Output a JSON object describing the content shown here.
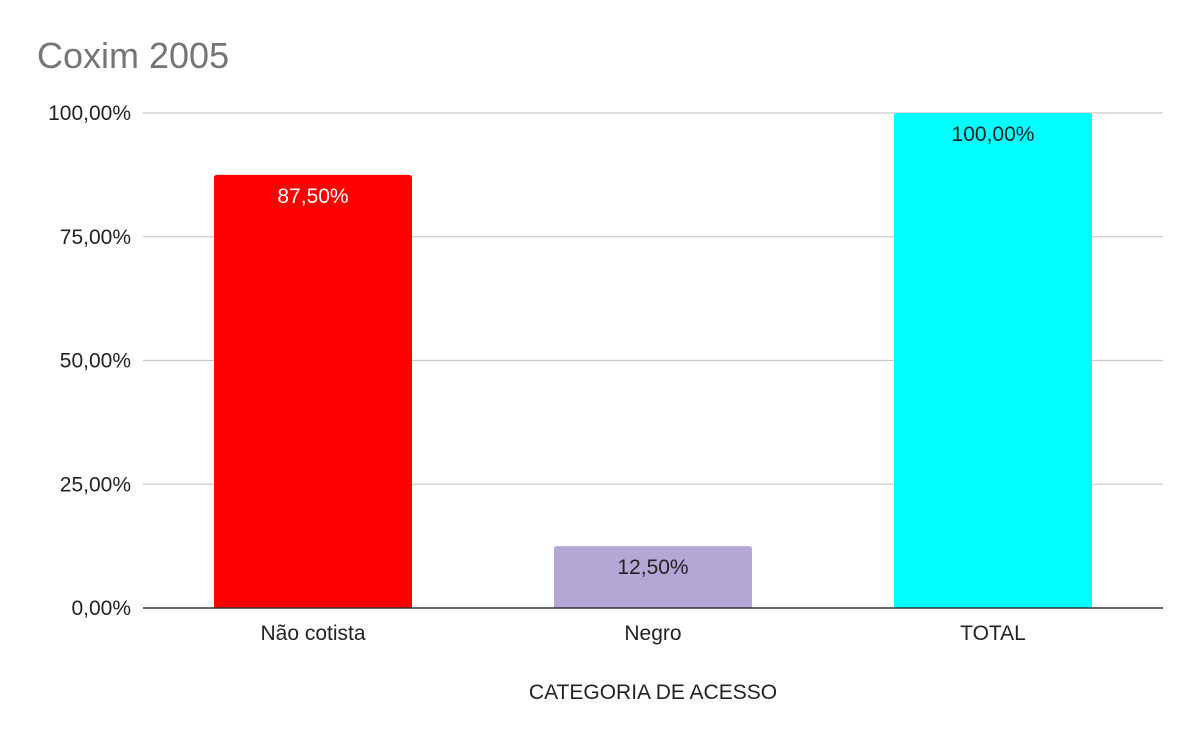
{
  "chart_data": {
    "type": "bar",
    "title": "Coxim 2005",
    "xlabel": "CATEGORIA DE ACESSO",
    "ylabel": "",
    "categories": [
      "Não cotista",
      "Negro",
      "TOTAL"
    ],
    "values": [
      87.5,
      12.5,
      100.0
    ],
    "data_labels": [
      "87,50%",
      "12,50%",
      "100,00%"
    ],
    "bar_colors": [
      "#ff0000",
      "#b4a7d6",
      "#00ffff"
    ],
    "label_colors": [
      "#ffffff",
      "#222222",
      "#222222"
    ],
    "ylim": [
      0,
      100
    ],
    "yticks": [
      0,
      25,
      50,
      75,
      100
    ],
    "ytick_labels": [
      "0,00%",
      "25,00%",
      "50,00%",
      "75,00%",
      "100,00%"
    ],
    "grid": true,
    "legend": "none"
  }
}
